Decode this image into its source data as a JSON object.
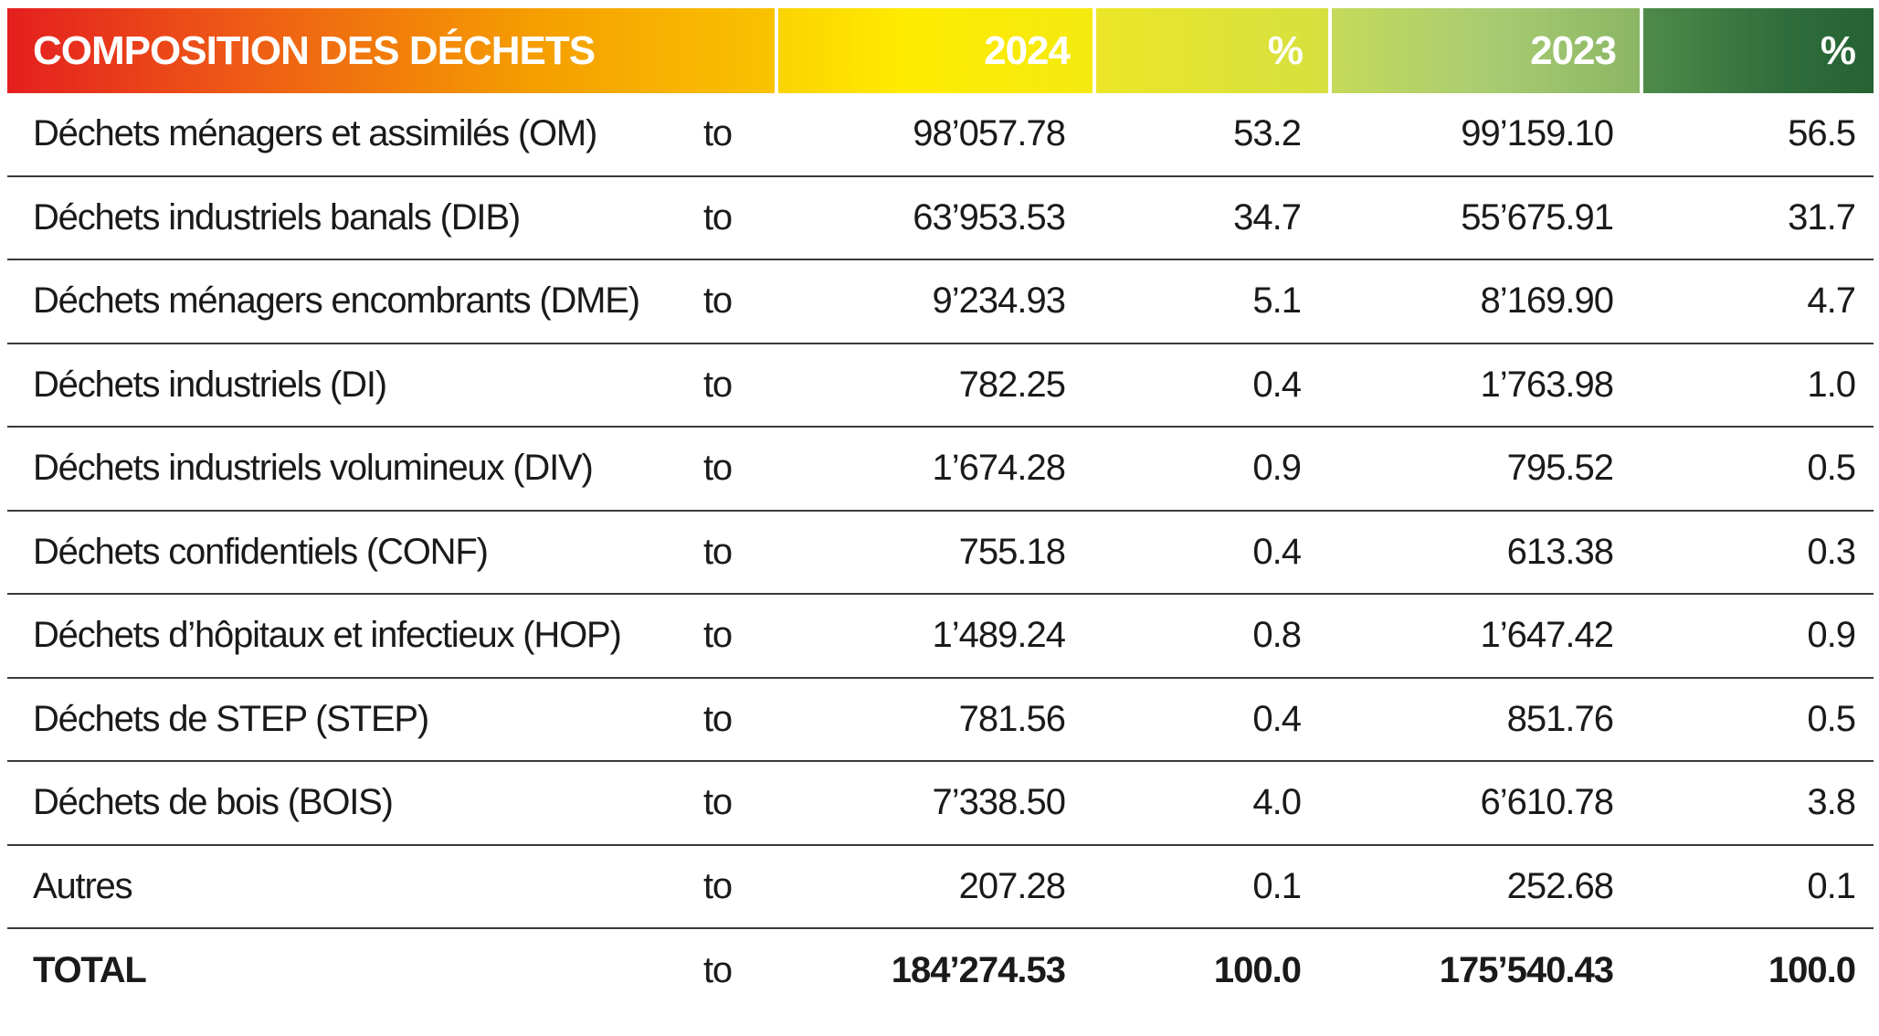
{
  "header": {
    "title": "COMPOSITION DES DÉCHETS",
    "col_2024": "2024",
    "col_pct1": "%",
    "col_2023": "2023",
    "col_pct2": "%",
    "colors": [
      "#e41f1f",
      "#f5a400",
      "#ffe800",
      "#cfe03a",
      "#a3c96b",
      "#5f9a55",
      "#2e6b3f"
    ]
  },
  "rows": [
    {
      "label": "Déchets ménagers et assimilés (OM)",
      "unit": "to",
      "v2024": "98’057.78",
      "p2024": "53.2",
      "v2023": "99’159.10",
      "p2023": "56.5"
    },
    {
      "label": "Déchets industriels banals (DIB)",
      "unit": "to",
      "v2024": "63’953.53",
      "p2024": "34.7",
      "v2023": "55’675.91",
      "p2023": "31.7"
    },
    {
      "label": "Déchets ménagers encombrants (DME)",
      "unit": "to",
      "v2024": "9’234.93",
      "p2024": "5.1",
      "v2023": "8’169.90",
      "p2023": "4.7"
    },
    {
      "label": "Déchets industriels (DI)",
      "unit": "to",
      "v2024": "782.25",
      "p2024": "0.4",
      "v2023": "1’763.98",
      "p2023": "1.0"
    },
    {
      "label": "Déchets industriels volumineux (DIV)",
      "unit": "to",
      "v2024": "1’674.28",
      "p2024": "0.9",
      "v2023": "795.52",
      "p2023": "0.5"
    },
    {
      "label": "Déchets confidentiels (CONF)",
      "unit": "to",
      "v2024": "755.18",
      "p2024": "0.4",
      "v2023": "613.38",
      "p2023": "0.3"
    },
    {
      "label": "Déchets d’hôpitaux et infectieux (HOP)",
      "unit": "to",
      "v2024": "1’489.24",
      "p2024": "0.8",
      "v2023": "1’647.42",
      "p2023": "0.9"
    },
    {
      "label": "Déchets de STEP (STEP)",
      "unit": "to",
      "v2024": "781.56",
      "p2024": "0.4",
      "v2023": "851.76",
      "p2023": "0.5"
    },
    {
      "label": "Déchets de bois (BOIS)",
      "unit": "to",
      "v2024": "7’338.50",
      "p2024": "4.0",
      "v2023": "6’610.78",
      "p2023": "3.8"
    },
    {
      "label": "Autres",
      "unit": "to",
      "v2024": "207.28",
      "p2024": "0.1",
      "v2023": "252.68",
      "p2023": "0.1"
    }
  ],
  "total": {
    "label": "TOTAL",
    "unit": "to",
    "v2024": "184’274.53",
    "p2024": "100.0",
    "v2023": "175’540.43",
    "p2023": "100.0"
  }
}
